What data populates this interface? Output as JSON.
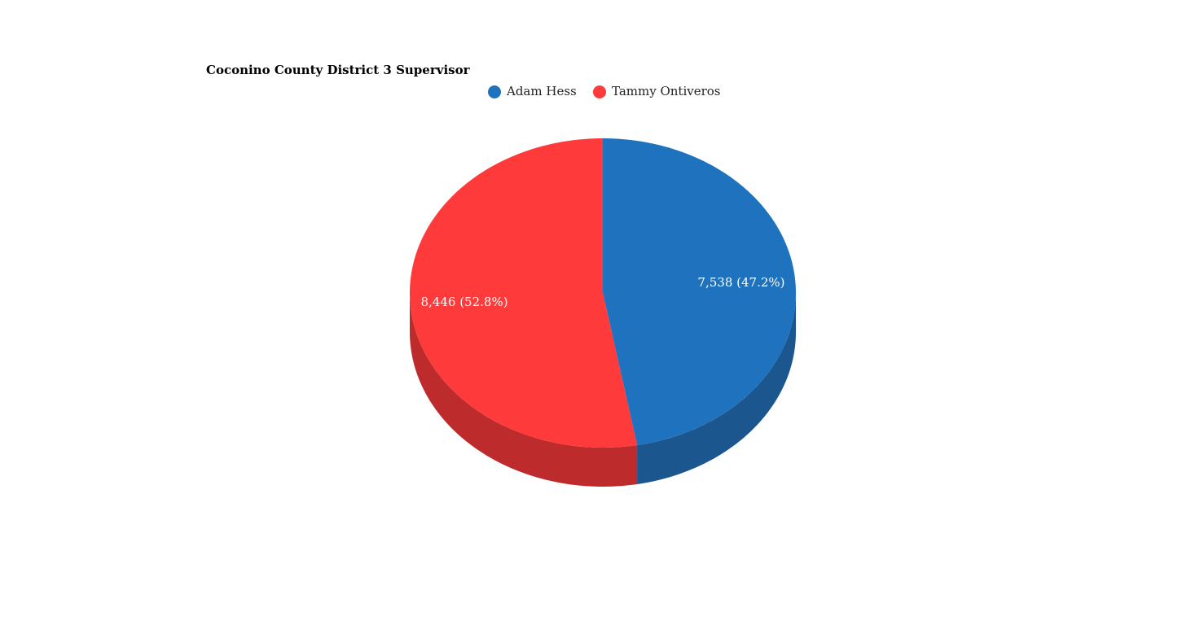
{
  "chart_data": {
    "type": "pie",
    "title": "Coconino County District 3 Supervisor",
    "categories": [
      "Adam Hess",
      "Tammy Ontiveros"
    ],
    "values": [
      7538,
      8446
    ],
    "value_labels": [
      "7,538 (47.2%)",
      "8,446 (52.8%)"
    ],
    "colors": [
      "#1f72bd",
      "#fe3a3b"
    ],
    "side_colors": [
      "#1b568f",
      "#be2b2c"
    ]
  }
}
